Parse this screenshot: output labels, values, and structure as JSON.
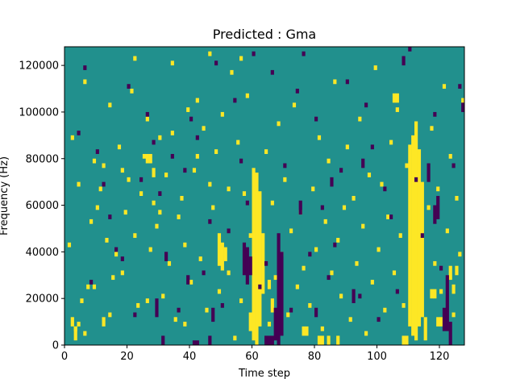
{
  "chart_data": {
    "type": "heatmap",
    "title": "Predicted : Gma",
    "xlabel": "Time step",
    "ylabel": "Frequency (Hz)",
    "xlim": [
      0,
      128
    ],
    "ylim": [
      0,
      128000
    ],
    "x_ticks": [
      0,
      20,
      40,
      60,
      80,
      100,
      120
    ],
    "y_ticks": [
      0,
      20000,
      40000,
      60000,
      80000,
      100000,
      120000
    ],
    "grid": false,
    "legend": "none",
    "colors": {
      "background": "#21908d",
      "high": "#fde725",
      "low": "#440154"
    },
    "bins": {
      "time_steps": 128,
      "freq_bins": 128,
      "freq_bin_hz": 1000
    },
    "high_runs": [
      [
        60,
        2000,
        76000
      ],
      [
        61,
        0,
        74000
      ],
      [
        62,
        8000,
        66000
      ],
      [
        63,
        22000,
        48000
      ],
      [
        110,
        8000,
        86000
      ],
      [
        111,
        4000,
        90000
      ],
      [
        112,
        2000,
        96000
      ],
      [
        113,
        8000,
        84000
      ],
      [
        114,
        12000,
        70000
      ],
      [
        115,
        2000,
        12000
      ],
      [
        49,
        34000,
        48000
      ],
      [
        50,
        32000,
        44000
      ],
      [
        51,
        36000,
        42000
      ],
      [
        59,
        6000,
        14000
      ],
      [
        65,
        24000,
        28000
      ],
      [
        66,
        14000,
        20000
      ],
      [
        76,
        4000,
        8000
      ],
      [
        77,
        4000,
        8000
      ],
      [
        76,
        32000,
        34000
      ],
      [
        81,
        0,
        4000
      ],
      [
        82,
        0,
        4000
      ],
      [
        84,
        0,
        4000
      ],
      [
        87,
        0,
        4000
      ],
      [
        108,
        0,
        4000
      ],
      [
        109,
        0,
        4000
      ],
      [
        119,
        8000,
        12000
      ],
      [
        120,
        8000,
        12000
      ],
      [
        117,
        20000,
        24000
      ],
      [
        118,
        20000,
        24000
      ],
      [
        2,
        8000,
        12000
      ],
      [
        12,
        8000,
        12000
      ],
      [
        3,
        2000,
        8000
      ],
      [
        27,
        78000,
        82000
      ],
      [
        26,
        78000,
        82000
      ],
      [
        28,
        72000,
        76000
      ],
      [
        123,
        28000,
        34000
      ],
      [
        124,
        22000,
        26000
      ],
      [
        125,
        30000,
        34000
      ],
      [
        105,
        104000,
        108000
      ],
      [
        106,
        104000,
        108000
      ]
    ],
    "high_cells": [
      [
        3,
        6
      ],
      [
        4,
        8
      ],
      [
        5,
        18
      ],
      [
        6,
        4
      ],
      [
        7,
        24
      ],
      [
        8,
        52
      ],
      [
        9,
        78
      ],
      [
        10,
        58
      ],
      [
        11,
        66
      ],
      [
        12,
        76
      ],
      [
        13,
        44
      ],
      [
        14,
        12
      ],
      [
        15,
        28
      ],
      [
        16,
        38
      ],
      [
        17,
        84
      ],
      [
        18,
        30
      ],
      [
        19,
        56
      ],
      [
        20,
        70
      ],
      [
        21,
        108
      ],
      [
        22,
        46
      ],
      [
        23,
        16
      ],
      [
        24,
        64
      ],
      [
        25,
        80
      ],
      [
        26,
        96
      ],
      [
        27,
        40
      ],
      [
        28,
        60
      ],
      [
        29,
        50
      ],
      [
        30,
        88
      ],
      [
        31,
        20
      ],
      [
        32,
        72
      ],
      [
        33,
        34
      ],
      [
        34,
        90
      ],
      [
        35,
        10
      ],
      [
        36,
        54
      ],
      [
        37,
        62
      ],
      [
        38,
        42
      ],
      [
        39,
        100
      ],
      [
        40,
        26
      ],
      [
        41,
        74
      ],
      [
        42,
        104
      ],
      [
        43,
        36
      ],
      [
        44,
        92
      ],
      [
        45,
        14
      ],
      [
        46,
        68
      ],
      [
        47,
        58
      ],
      [
        48,
        82
      ],
      [
        49,
        22
      ],
      [
        50,
        98
      ],
      [
        52,
        30
      ],
      [
        53,
        116
      ],
      [
        54,
        2
      ],
      [
        55,
        86
      ],
      [
        56,
        18
      ],
      [
        57,
        64
      ],
      [
        58,
        106
      ],
      [
        59,
        46
      ],
      [
        64,
        82
      ],
      [
        65,
        8
      ],
      [
        66,
        60
      ],
      [
        67,
        28
      ],
      [
        68,
        94
      ],
      [
        69,
        38
      ],
      [
        70,
        70
      ],
      [
        71,
        12
      ],
      [
        72,
        48
      ],
      [
        73,
        102
      ],
      [
        74,
        24
      ],
      [
        75,
        56
      ],
      [
        78,
        16
      ],
      [
        79,
        66
      ],
      [
        80,
        40
      ],
      [
        81,
        88
      ],
      [
        82,
        6
      ],
      [
        83,
        52
      ],
      [
        84,
        78
      ],
      [
        85,
        30
      ],
      [
        86,
        112
      ],
      [
        87,
        44
      ],
      [
        88,
        20
      ],
      [
        89,
        58
      ],
      [
        90,
        84
      ],
      [
        91,
        10
      ],
      [
        92,
        62
      ],
      [
        93,
        34
      ],
      [
        94,
        96
      ],
      [
        95,
        50
      ],
      [
        96,
        4
      ],
      [
        97,
        72
      ],
      [
        98,
        26
      ],
      [
        99,
        118
      ],
      [
        100,
        40
      ],
      [
        101,
        68
      ],
      [
        102,
        14
      ],
      [
        103,
        54
      ],
      [
        104,
        86
      ],
      [
        105,
        30
      ],
      [
        106,
        100
      ],
      [
        107,
        46
      ],
      [
        108,
        16
      ],
      [
        109,
        76
      ],
      [
        116,
        58
      ],
      [
        117,
        92
      ],
      [
        118,
        34
      ],
      [
        119,
        66
      ],
      [
        120,
        22
      ],
      [
        121,
        110
      ],
      [
        122,
        48
      ],
      [
        123,
        80
      ],
      [
        124,
        12
      ],
      [
        125,
        62
      ],
      [
        126,
        38
      ],
      [
        127,
        104
      ],
      [
        1,
        42
      ],
      [
        2,
        88
      ],
      [
        4,
        68
      ],
      [
        6,
        112
      ],
      [
        9,
        24
      ],
      [
        14,
        102
      ],
      [
        18,
        74
      ],
      [
        22,
        122
      ],
      [
        26,
        18
      ],
      [
        30,
        56
      ],
      [
        34,
        120
      ],
      [
        38,
        8
      ],
      [
        42,
        80
      ],
      [
        46,
        124
      ],
      [
        52,
        66
      ],
      [
        56,
        122
      ]
    ],
    "low_runs": [
      [
        68,
        0,
        48000
      ],
      [
        67,
        2000,
        16000
      ],
      [
        69,
        4000,
        40000
      ],
      [
        57,
        30000,
        44000
      ],
      [
        58,
        26000,
        42000
      ],
      [
        59,
        30000,
        38000
      ],
      [
        122,
        6000,
        30000
      ],
      [
        121,
        6000,
        16000
      ],
      [
        123,
        0,
        10000
      ],
      [
        46,
        0,
        4000
      ],
      [
        64,
        0,
        4000
      ],
      [
        65,
        0,
        4000
      ],
      [
        66,
        0,
        4000
      ],
      [
        41,
        0,
        2000
      ],
      [
        42,
        0,
        2000
      ],
      [
        31,
        0,
        4000
      ],
      [
        118,
        52000,
        60000
      ],
      [
        119,
        54000,
        64000
      ],
      [
        116,
        70000,
        78000
      ],
      [
        127,
        100000,
        104000
      ],
      [
        108,
        120000,
        124000
      ],
      [
        29,
        12000,
        20000
      ],
      [
        39,
        26000,
        30000
      ],
      [
        47,
        10000,
        16000
      ],
      [
        92,
        18000,
        24000
      ],
      [
        75,
        56000,
        62000
      ],
      [
        80,
        12000,
        16000
      ],
      [
        85,
        68000,
        72000
      ],
      [
        32,
        36000,
        40000
      ],
      [
        95,
        76000,
        80000
      ]
    ],
    "low_cells": [
      [
        4,
        90
      ],
      [
        6,
        118
      ],
      [
        10,
        82
      ],
      [
        14,
        54
      ],
      [
        18,
        36
      ],
      [
        22,
        12
      ],
      [
        26,
        98
      ],
      [
        30,
        64
      ],
      [
        34,
        80
      ],
      [
        38,
        74
      ],
      [
        42,
        88
      ],
      [
        46,
        52
      ],
      [
        50,
        16
      ],
      [
        54,
        104
      ],
      [
        58,
        60
      ],
      [
        62,
        24
      ],
      [
        66,
        116
      ],
      [
        70,
        76
      ],
      [
        74,
        108
      ],
      [
        78,
        38
      ],
      [
        82,
        58
      ],
      [
        86,
        42
      ],
      [
        90,
        112
      ],
      [
        94,
        20
      ],
      [
        98,
        84
      ],
      [
        102,
        66
      ],
      [
        106,
        22
      ],
      [
        110,
        126
      ],
      [
        114,
        46
      ],
      [
        118,
        98
      ],
      [
        124,
        76
      ],
      [
        126,
        110
      ],
      [
        8,
        26
      ],
      [
        12,
        68
      ],
      [
        16,
        40
      ],
      [
        20,
        110
      ],
      [
        24,
        70
      ],
      [
        28,
        86
      ],
      [
        36,
        14
      ],
      [
        40,
        96
      ],
      [
        44,
        30
      ],
      [
        48,
        120
      ],
      [
        52,
        48
      ],
      [
        56,
        78
      ],
      [
        60,
        124
      ],
      [
        64,
        34
      ],
      [
        72,
        14
      ],
      [
        76,
        124
      ],
      [
        80,
        96
      ],
      [
        84,
        28
      ],
      [
        88,
        74
      ],
      [
        96,
        102
      ],
      [
        100,
        10
      ],
      [
        104,
        54
      ],
      [
        112,
        70
      ],
      [
        120,
        32
      ]
    ]
  }
}
